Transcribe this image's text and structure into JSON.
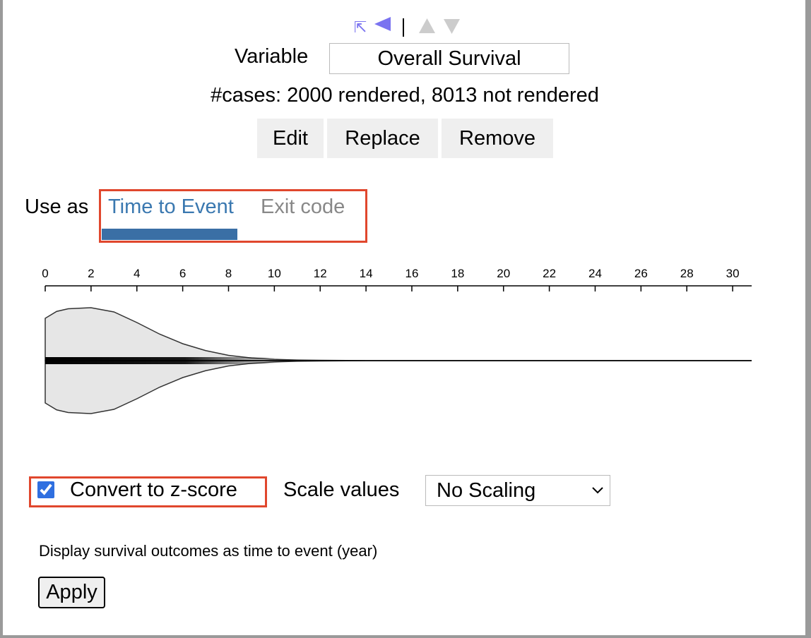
{
  "variable": {
    "label": "Variable",
    "value": "Overall Survival"
  },
  "cases": "#cases: 2000 rendered, 8013 not rendered",
  "buttons": [
    "Edit",
    "Replace",
    "Remove"
  ],
  "use_as": {
    "label": "Use as",
    "tabs": [
      "Time to Event",
      "Exit code"
    ],
    "active": 0
  },
  "plot": {
    "type": "violin",
    "xlim": [
      0,
      30.83
    ],
    "xticks": [
      0,
      2,
      4,
      6,
      8,
      10,
      12,
      14,
      16,
      18,
      20,
      22,
      24,
      26,
      28,
      30
    ],
    "density": {
      "x": [
        0,
        0,
        0.5,
        1,
        2,
        3,
        4,
        5,
        6,
        7,
        8,
        9,
        10,
        11,
        12,
        14,
        30.83
      ],
      "y": [
        0,
        0.8,
        0.93,
        0.98,
        1,
        0.92,
        0.72,
        0.5,
        0.32,
        0.19,
        0.1,
        0.05,
        0.025,
        0.012,
        0.006,
        0,
        0
      ]
    }
  },
  "zscore": {
    "label": "Convert to z-score",
    "checked": true
  },
  "scale": {
    "label": "Scale values",
    "options": [
      "No Scaling"
    ],
    "selected": 0
  },
  "description": "Display survival outcomes as time to event (year)",
  "apply": "Apply"
}
